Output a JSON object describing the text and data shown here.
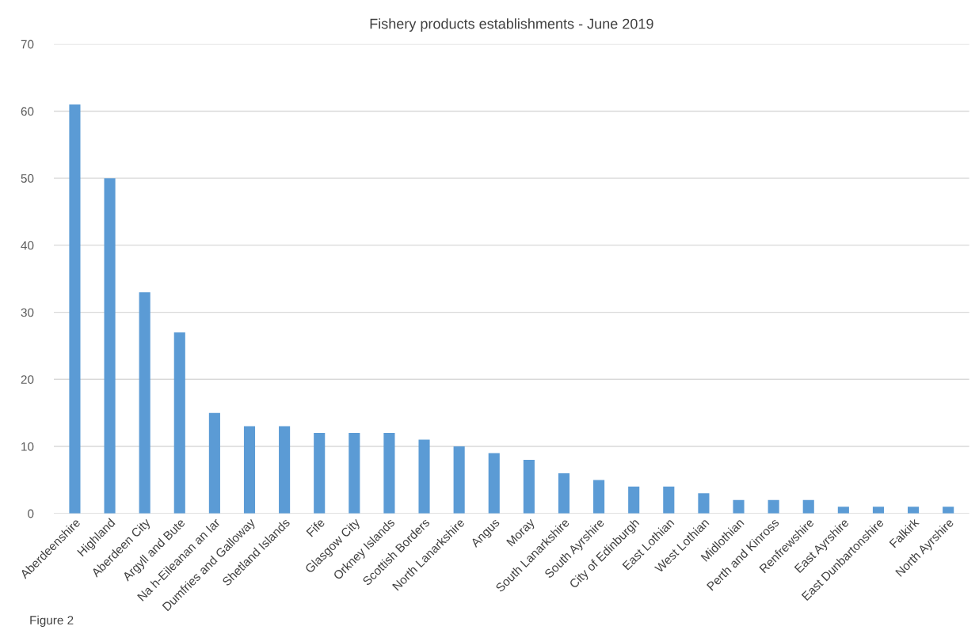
{
  "chart_data": {
    "type": "bar",
    "title": "Fishery products establishments - June 2019",
    "categories": [
      "Aberdeenshire",
      "Highland",
      "Aberdeen City",
      "Argyll and Bute",
      "Na h-Eileanan an Iar",
      "Dumfries and Galloway",
      "Shetland Islands",
      "Fife",
      "Glasgow City",
      "Orkney Islands",
      "Scottish Borders",
      "North Lanarkshire",
      "Angus",
      "Moray",
      "South Lanarkshire",
      "South Ayrshire",
      "City of Edinburgh",
      "East Lothian",
      "West Lothian",
      "Midlothian",
      "Perth and Kinross",
      "Renfrewshire",
      "East Ayrshire",
      "East Dunbartonshire",
      "Falkirk",
      "North Ayrshire"
    ],
    "values": [
      61,
      50,
      33,
      27,
      15,
      13,
      13,
      12,
      12,
      12,
      11,
      10,
      9,
      8,
      6,
      5,
      4,
      4,
      3,
      2,
      2,
      2,
      1,
      1,
      1,
      1
    ],
    "color": "#5b9bd5",
    "ylim": [
      0,
      70
    ],
    "yticks": [
      0,
      10,
      20,
      30,
      40,
      50,
      60,
      70
    ],
    "grid": "y",
    "annotations": [
      "Figure 2"
    ]
  }
}
